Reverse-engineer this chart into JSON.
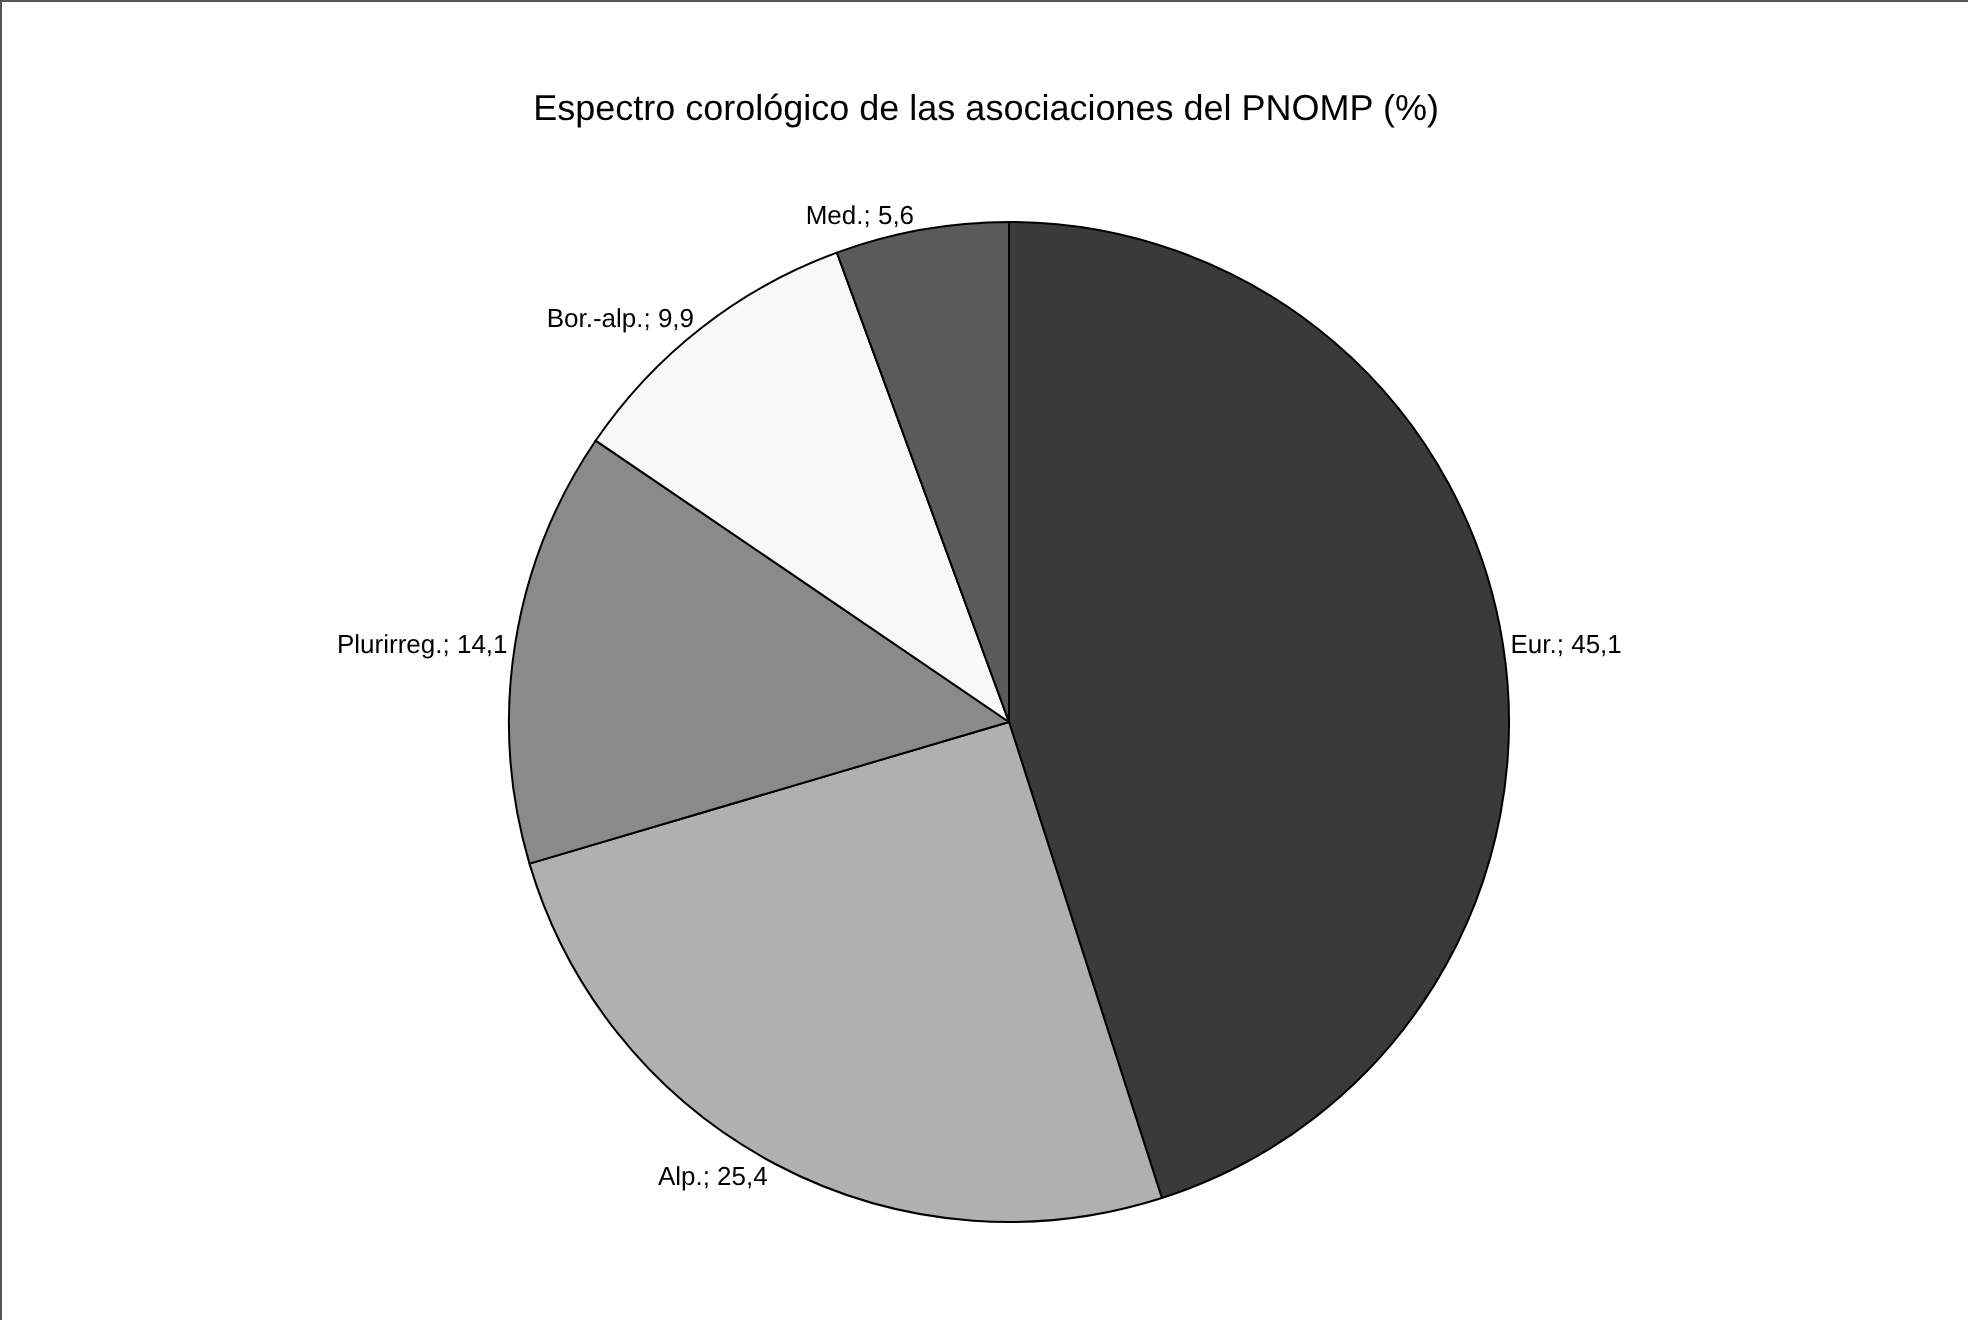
{
  "chart_data": {
    "type": "pie",
    "title": "Espectro corológico de las asociaciones del PNOMP (%)",
    "categories": [
      "Eur.",
      "Alp.",
      "Plurirreg.",
      "Bor.-alp.",
      "Med."
    ],
    "values": [
      45.1,
      25.4,
      14.1,
      9.9,
      5.6
    ],
    "value_labels": [
      "45,1",
      "25,4",
      "14,1",
      "9,9",
      "5,6"
    ],
    "colors": [
      "#3a3a3a",
      "#b0b0b0",
      "#8a8a8a",
      "#f8f8f8",
      "#5a5a5a"
    ],
    "legend": false
  }
}
